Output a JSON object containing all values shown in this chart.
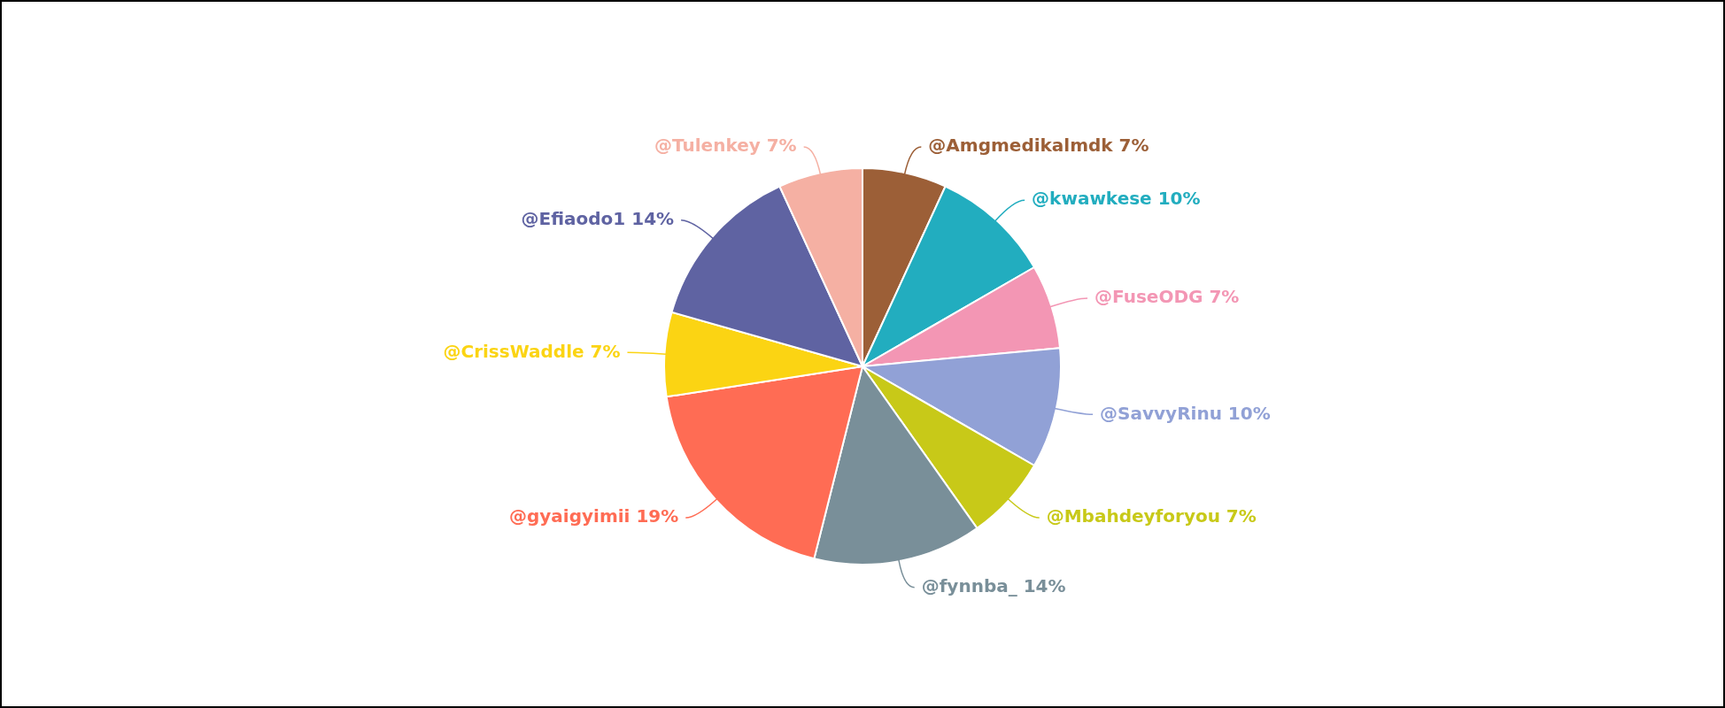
{
  "chart_data": {
    "type": "pie",
    "categories": [
      "@Amgmedikalmdk",
      "@kwawkese",
      "@FuseODG",
      "@SavvyRinu",
      "@Mbahdeyforyou",
      "@fynnba_",
      "@gyaigyimii",
      "@CrissWaddle",
      "@Efiaodo1",
      "@Tulenkey"
    ],
    "values": [
      7,
      10,
      7,
      10,
      7,
      14,
      19,
      7,
      14,
      7
    ],
    "value_labels": [
      "7%",
      "10%",
      "7%",
      "10%",
      "7%",
      "14%",
      "19%",
      "7%",
      "14%",
      "7%"
    ],
    "colors": [
      "#9c5f37",
      "#22adbf",
      "#f396b4",
      "#91a1d6",
      "#c8c918",
      "#798f99",
      "#ff6c54",
      "#fbd413",
      "#5f63a2",
      "#f5b0a3"
    ],
    "legend": false
  }
}
